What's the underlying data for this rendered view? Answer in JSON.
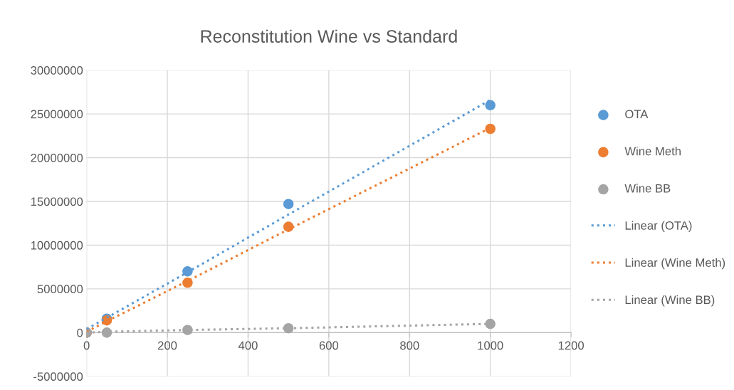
{
  "chart_data": {
    "type": "scatter",
    "title": "Reconstitution Wine vs Standard",
    "x": [
      0,
      50,
      250,
      500,
      1000
    ],
    "series": [
      {
        "name": "OTA",
        "color": "#5b9bd5",
        "values": [
          0,
          1600000,
          7000000,
          14700000,
          26000000
        ],
        "marker": "circle"
      },
      {
        "name": "Wine Meth",
        "color": "#ed7d31",
        "values": [
          0,
          1400000,
          5700000,
          12100000,
          23300000
        ],
        "marker": "circle"
      },
      {
        "name": "Wine BB",
        "color": "#a5a5a5",
        "values": [
          0,
          0,
          300000,
          500000,
          1000000
        ],
        "marker": "circle"
      },
      {
        "name": "Linear (OTA)",
        "type": "line",
        "color": "#5b9bd5",
        "values": [
          400000,
          1700000,
          6900000,
          13500000,
          26600000
        ],
        "line_style": "dotted",
        "marker": "none"
      },
      {
        "name": "Linear (Wine Meth)",
        "type": "line",
        "color": "#ed7d31",
        "values": [
          100000,
          1300000,
          5900000,
          11800000,
          23400000
        ],
        "line_style": "dotted",
        "marker": "none"
      },
      {
        "name": "Linear (Wine BB)",
        "type": "line",
        "color": "#a5a5a5",
        "values": [
          0,
          100000,
          300000,
          500000,
          1000000
        ],
        "line_style": "dotted",
        "marker": "none"
      }
    ],
    "xlim": [
      0,
      1200
    ],
    "xticks": [
      0,
      200,
      400,
      600,
      800,
      1000,
      1200
    ],
    "ylim": [
      -5000000,
      30000000
    ],
    "yticks": [
      -5000000,
      0,
      5000000,
      10000000,
      15000000,
      20000000,
      25000000,
      30000000
    ],
    "grid": true,
    "legend": "right"
  }
}
